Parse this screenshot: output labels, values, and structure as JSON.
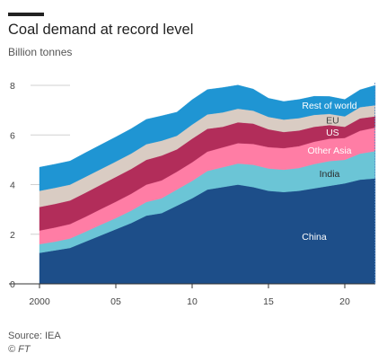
{
  "header": {
    "title": "Coal demand at record level",
    "subtitle": "Billion tonnes"
  },
  "footer": {
    "source": "Source: IEA",
    "credit": "© FT"
  },
  "chart_data": {
    "type": "area",
    "stacked": true,
    "title": "Coal demand at record level",
    "ylabel": "Billion tonnes",
    "xlabel": "",
    "ylim": [
      0,
      8
    ],
    "yticks": [
      0,
      2,
      4,
      6,
      8
    ],
    "xlim": [
      2000,
      2022
    ],
    "x_tick_values": [
      2000,
      2005,
      2010,
      2015,
      2020
    ],
    "x_tick_labels": [
      "2000",
      "05",
      "10",
      "15",
      "20"
    ],
    "grid": "horizontal",
    "x": [
      2000,
      2001,
      2002,
      2003,
      2004,
      2005,
      2006,
      2007,
      2008,
      2009,
      2010,
      2011,
      2012,
      2013,
      2014,
      2015,
      2016,
      2017,
      2018,
      2019,
      2020,
      2021,
      2022
    ],
    "series": [
      {
        "name": "China",
        "color": "#1d4e89",
        "label_color": "#ffffff",
        "values": [
          1.25,
          1.35,
          1.45,
          1.7,
          1.95,
          2.2,
          2.45,
          2.75,
          2.85,
          3.15,
          3.45,
          3.8,
          3.9,
          4.0,
          3.9,
          3.75,
          3.7,
          3.75,
          3.85,
          3.95,
          4.05,
          4.2,
          4.25
        ]
      },
      {
        "name": "India",
        "color": "#6bc5d6",
        "label_color": "#2a2a2a",
        "values": [
          0.35,
          0.35,
          0.38,
          0.4,
          0.43,
          0.45,
          0.5,
          0.55,
          0.6,
          0.65,
          0.7,
          0.75,
          0.8,
          0.85,
          0.9,
          0.9,
          0.9,
          0.92,
          0.98,
          1.0,
          0.95,
          1.05,
          1.1
        ]
      },
      {
        "name": "Other Asia",
        "color": "#ff7da5",
        "label_color": "#ffffff",
        "values": [
          0.55,
          0.57,
          0.58,
          0.6,
          0.63,
          0.66,
          0.68,
          0.7,
          0.72,
          0.72,
          0.75,
          0.78,
          0.8,
          0.82,
          0.84,
          0.86,
          0.87,
          0.88,
          0.9,
          0.9,
          0.88,
          0.92,
          0.95
        ]
      },
      {
        "name": "US",
        "color": "#b22d5a",
        "label_color": "#ffffff",
        "values": [
          0.95,
          0.95,
          0.95,
          0.97,
          0.98,
          1.0,
          1.0,
          1.0,
          1.0,
          0.9,
          0.95,
          0.92,
          0.83,
          0.84,
          0.82,
          0.72,
          0.65,
          0.63,
          0.6,
          0.55,
          0.45,
          0.5,
          0.45
        ]
      },
      {
        "name": "EU",
        "color": "#d9ccc3",
        "label_color": "#444444",
        "values": [
          0.65,
          0.65,
          0.64,
          0.64,
          0.63,
          0.62,
          0.62,
          0.63,
          0.6,
          0.55,
          0.57,
          0.58,
          0.58,
          0.55,
          0.52,
          0.5,
          0.5,
          0.5,
          0.48,
          0.45,
          0.42,
          0.45,
          0.45
        ]
      },
      {
        "name": "Rest of world",
        "color": "#1f95d3",
        "label_color": "#ffffff",
        "values": [
          0.95,
          0.95,
          0.95,
          0.97,
          0.98,
          0.99,
          1.0,
          1.0,
          1.0,
          0.95,
          1.0,
          1.0,
          1.0,
          0.95,
          0.87,
          0.75,
          0.73,
          0.75,
          0.75,
          0.7,
          0.68,
          0.7,
          0.8
        ]
      }
    ]
  }
}
